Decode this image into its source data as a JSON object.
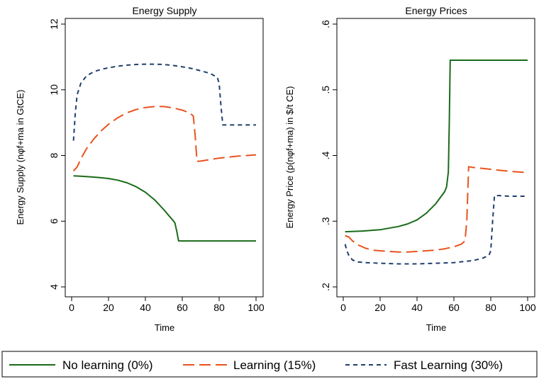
{
  "chart_data": [
    {
      "type": "line",
      "title": "Energy Supply",
      "xlabel": "Time",
      "ylabel": "Energy Supply (nφf+ma in GtCE)",
      "xlim": [
        0,
        100
      ],
      "ylim": [
        4,
        12
      ],
      "xticks": [
        "0",
        "20",
        "40",
        "60",
        "80",
        "100"
      ],
      "yticks": [
        "4",
        "6",
        "8",
        "10",
        "12"
      ],
      "series": [
        {
          "key": "nolearn",
          "points": [
            [
              1,
              7.38
            ],
            [
              5,
              7.37
            ],
            [
              10,
              7.35
            ],
            [
              15,
              7.33
            ],
            [
              20,
              7.3
            ],
            [
              25,
              7.25
            ],
            [
              30,
              7.17
            ],
            [
              35,
              7.05
            ],
            [
              40,
              6.88
            ],
            [
              45,
              6.65
            ],
            [
              50,
              6.35
            ],
            [
              55,
              6.02
            ],
            [
              56,
              5.95
            ],
            [
              57,
              5.7
            ],
            [
              58,
              5.4
            ],
            [
              65,
              5.4
            ],
            [
              70,
              5.4
            ],
            [
              80,
              5.4
            ],
            [
              90,
              5.4
            ],
            [
              100,
              5.4
            ]
          ]
        },
        {
          "key": "learn",
          "points": [
            [
              1,
              7.53
            ],
            [
              3,
              7.65
            ],
            [
              5,
              7.9
            ],
            [
              8,
              8.2
            ],
            [
              12,
              8.5
            ],
            [
              16,
              8.75
            ],
            [
              20,
              8.95
            ],
            [
              25,
              9.15
            ],
            [
              30,
              9.3
            ],
            [
              35,
              9.4
            ],
            [
              40,
              9.46
            ],
            [
              45,
              9.49
            ],
            [
              50,
              9.49
            ],
            [
              55,
              9.45
            ],
            [
              60,
              9.38
            ],
            [
              64,
              9.3
            ],
            [
              66,
              9.2
            ],
            [
              67,
              8.6
            ],
            [
              68,
              7.82
            ],
            [
              70,
              7.83
            ],
            [
              80,
              7.92
            ],
            [
              90,
              7.98
            ],
            [
              100,
              8.02
            ]
          ]
        },
        {
          "key": "fast",
          "points": [
            [
              1,
              8.45
            ],
            [
              2,
              9.3
            ],
            [
              3,
              9.85
            ],
            [
              5,
              10.2
            ],
            [
              8,
              10.42
            ],
            [
              12,
              10.55
            ],
            [
              16,
              10.62
            ],
            [
              20,
              10.67
            ],
            [
              25,
              10.72
            ],
            [
              30,
              10.75
            ],
            [
              35,
              10.77
            ],
            [
              40,
              10.78
            ],
            [
              45,
              10.78
            ],
            [
              50,
              10.77
            ],
            [
              55,
              10.74
            ],
            [
              60,
              10.7
            ],
            [
              65,
              10.65
            ],
            [
              70,
              10.58
            ],
            [
              75,
              10.5
            ],
            [
              79,
              10.38
            ],
            [
              80,
              10.2
            ],
            [
              81,
              9.5
            ],
            [
              82,
              8.93
            ],
            [
              85,
              8.93
            ],
            [
              90,
              8.93
            ],
            [
              95,
              8.93
            ],
            [
              100,
              8.93
            ]
          ]
        }
      ]
    },
    {
      "type": "line",
      "title": "Energy Prices",
      "xlabel": "Time",
      "ylabel": "Energy Price (p(nφf+ma) in $/t CE)",
      "xlim": [
        0,
        100
      ],
      "ylim": [
        0.2,
        0.6
      ],
      "xticks": [
        "0",
        "20",
        "40",
        "60",
        "80",
        "100"
      ],
      "yticks": [
        ".2",
        ".3",
        ".4",
        ".5",
        ".6"
      ],
      "series": [
        {
          "key": "nolearn",
          "points": [
            [
              1,
              0.284
            ],
            [
              10,
              0.285
            ],
            [
              20,
              0.287
            ],
            [
              30,
              0.292
            ],
            [
              35,
              0.296
            ],
            [
              40,
              0.302
            ],
            [
              45,
              0.312
            ],
            [
              50,
              0.326
            ],
            [
              55,
              0.345
            ],
            [
              56,
              0.352
            ],
            [
              57,
              0.375
            ],
            [
              57.5,
              0.45
            ],
            [
              58,
              0.545
            ],
            [
              60,
              0.545
            ],
            [
              70,
              0.545
            ],
            [
              80,
              0.545
            ],
            [
              90,
              0.545
            ],
            [
              100,
              0.545
            ]
          ]
        },
        {
          "key": "learn",
          "points": [
            [
              1,
              0.278
            ],
            [
              3,
              0.276
            ],
            [
              5,
              0.27
            ],
            [
              8,
              0.264
            ],
            [
              12,
              0.259
            ],
            [
              16,
              0.256
            ],
            [
              20,
              0.255
            ],
            [
              25,
              0.254
            ],
            [
              30,
              0.253
            ],
            [
              35,
              0.253
            ],
            [
              40,
              0.254
            ],
            [
              45,
              0.255
            ],
            [
              50,
              0.256
            ],
            [
              55,
              0.258
            ],
            [
              60,
              0.261
            ],
            [
              64,
              0.265
            ],
            [
              66,
              0.27
            ],
            [
              67,
              0.3
            ],
            [
              68,
              0.383
            ],
            [
              70,
              0.382
            ],
            [
              80,
              0.379
            ],
            [
              90,
              0.376
            ],
            [
              100,
              0.374
            ]
          ]
        },
        {
          "key": "fast",
          "points": [
            [
              1,
              0.265
            ],
            [
              2,
              0.255
            ],
            [
              3,
              0.248
            ],
            [
              5,
              0.241
            ],
            [
              8,
              0.238
            ],
            [
              12,
              0.237
            ],
            [
              20,
              0.236
            ],
            [
              30,
              0.235
            ],
            [
              40,
              0.235
            ],
            [
              50,
              0.236
            ],
            [
              60,
              0.237
            ],
            [
              70,
              0.24
            ],
            [
              75,
              0.243
            ],
            [
              79,
              0.248
            ],
            [
              80,
              0.255
            ],
            [
              81,
              0.3
            ],
            [
              82,
              0.339
            ],
            [
              85,
              0.339
            ],
            [
              90,
              0.338
            ],
            [
              95,
              0.338
            ],
            [
              100,
              0.338
            ]
          ]
        }
      ]
    }
  ],
  "legend": [
    {
      "key": "nolearn",
      "label": "No learning (0%)"
    },
    {
      "key": "learn",
      "label": "Learning (15%)"
    },
    {
      "key": "fast",
      "label": "Fast Learning (30%)"
    }
  ],
  "series_colors": {
    "nolearn": "#1a6b1a",
    "learn": "#e8531f",
    "fast": "#1f3f6e"
  },
  "series_dash": {
    "nolearn": "solid",
    "learn": "long-dash",
    "fast": "short-dash"
  }
}
